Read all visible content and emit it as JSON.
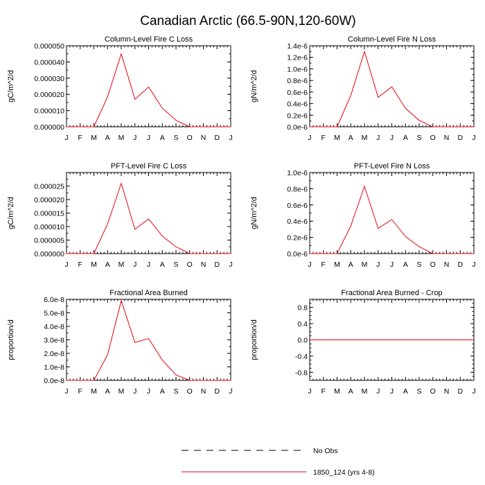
{
  "page_title": "Canadian Arctic (66.5-90N,120-60W)",
  "colors": {
    "series": "#e8000b",
    "axis": "#000000",
    "obs": "#000000"
  },
  "legend": {
    "obs_label": "No Obs",
    "model_label": "1850_124 (yrs 4-8)"
  },
  "chart_data": [
    {
      "type": "line",
      "title": "Column-Level Fire C Loss",
      "ylabel": "gC/m^2/d",
      "xlabel": "",
      "x_tick_labels": [
        "J",
        "F",
        "M",
        "A",
        "M",
        "J",
        "J",
        "A",
        "S",
        "O",
        "N",
        "D",
        "J"
      ],
      "ylim": [
        0,
        5e-05
      ],
      "y_ticks": [
        0,
        1e-05,
        2e-05,
        3e-05,
        4e-05,
        5e-05
      ],
      "y_tick_labels": [
        "0.000000",
        "0.000010",
        "0.000020",
        "0.000030",
        "0.000040",
        "0.000050"
      ],
      "y_minor_step": 5e-06,
      "series": [
        {
          "name": "1850_124 (yrs 4-8)",
          "values": [
            0,
            0,
            0,
            1.85e-05,
            4.5e-05,
            1.7e-05,
            2.45e-05,
            1.15e-05,
            4e-06,
            0,
            0,
            0,
            0
          ]
        }
      ]
    },
    {
      "type": "line",
      "title": "Column-Level Fire N Loss",
      "ylabel": "gN/m^2/d",
      "xlabel": "",
      "x_tick_labels": [
        "J",
        "F",
        "M",
        "A",
        "M",
        "J",
        "J",
        "A",
        "S",
        "O",
        "N",
        "D",
        "J"
      ],
      "ylim": [
        0,
        1.4e-06
      ],
      "y_ticks": [
        0,
        2e-07,
        4e-07,
        6e-07,
        8e-07,
        1e-06,
        1.2e-06,
        1.4e-06
      ],
      "y_tick_labels": [
        "0.0e-6",
        "0.2e-6",
        "0.4e-6",
        "0.6e-6",
        "0.8e-6",
        "1.0e-6",
        "1.2e-6",
        "1.4e-6"
      ],
      "y_minor_step": 1e-07,
      "series": [
        {
          "name": "1850_124 (yrs 4-8)",
          "values": [
            0,
            0,
            0,
            5.4e-07,
            1.3e-06,
            5.1e-07,
            6.9e-07,
            3.2e-07,
            1.1e-07,
            0,
            0,
            0,
            0
          ]
        }
      ]
    },
    {
      "type": "line",
      "title": "PFT-Level Fire C Loss",
      "ylabel": "gC/m^2/d",
      "xlabel": "",
      "x_tick_labels": [
        "J",
        "F",
        "M",
        "A",
        "M",
        "J",
        "J",
        "A",
        "S",
        "O",
        "N",
        "D",
        "J"
      ],
      "ylim": [
        0,
        3e-05
      ],
      "y_ticks": [
        0,
        5e-06,
        1e-05,
        1.5e-05,
        2e-05,
        2.5e-05
      ],
      "y_tick_labels": [
        "0.000000",
        "0.000005",
        "0.000010",
        "0.000015",
        "0.000020",
        "0.000025"
      ],
      "y_minor_step": 2.5e-06,
      "series": [
        {
          "name": "1850_124 (yrs 4-8)",
          "values": [
            0,
            0,
            0,
            1.1e-05,
            2.6e-05,
            9e-06,
            1.28e-05,
            6.5e-06,
            2.5e-06,
            0,
            0,
            0,
            0
          ]
        }
      ]
    },
    {
      "type": "line",
      "title": "PFT-Level Fire N Loss",
      "ylabel": "gN/m^2/d",
      "xlabel": "",
      "x_tick_labels": [
        "J",
        "F",
        "M",
        "A",
        "M",
        "J",
        "J",
        "A",
        "S",
        "O",
        "N",
        "D",
        "J"
      ],
      "ylim": [
        0,
        1e-06
      ],
      "y_ticks": [
        0,
        2e-07,
        4e-07,
        6e-07,
        8e-07,
        1e-06
      ],
      "y_tick_labels": [
        "0.0e-6",
        "0.2e-6",
        "0.4e-6",
        "0.6e-6",
        "0.8e-6",
        "1.0e-6"
      ],
      "y_minor_step": 1e-07,
      "series": [
        {
          "name": "1850_124 (yrs 4-8)",
          "values": [
            0,
            0,
            0,
            3.4e-07,
            8.3e-07,
            3.1e-07,
            4.2e-07,
            2.1e-07,
            8.5e-08,
            0,
            0,
            0,
            0
          ]
        }
      ]
    },
    {
      "type": "line",
      "title": "Fractional Area Burned",
      "ylabel": "proportion/d",
      "xlabel": "",
      "x_tick_labels": [
        "J",
        "F",
        "M",
        "A",
        "M",
        "J",
        "J",
        "A",
        "S",
        "O",
        "N",
        "D",
        "J"
      ],
      "ylim": [
        0,
        6e-08
      ],
      "y_ticks": [
        0,
        1e-08,
        2e-08,
        3e-08,
        4e-08,
        5e-08,
        6e-08
      ],
      "y_tick_labels": [
        "0.0e-8",
        "1.0e-8",
        "2.0e-8",
        "3.0e-8",
        "4.0e-8",
        "5.0e-8",
        "6.0e-8"
      ],
      "y_minor_step": 5e-09,
      "series": [
        {
          "name": "1850_124 (yrs 4-8)",
          "values": [
            0,
            0,
            0,
            1.9e-08,
            5.9e-08,
            2.8e-08,
            3.1e-08,
            1.5e-08,
            4e-09,
            0,
            0,
            0,
            0
          ]
        }
      ]
    },
    {
      "type": "line",
      "title": "Fractional Area Burned - Crop",
      "ylabel": "proportion/d",
      "xlabel": "",
      "x_tick_labels": [
        "J",
        "F",
        "M",
        "A",
        "M",
        "J",
        "J",
        "A",
        "S",
        "O",
        "N",
        "D",
        "J"
      ],
      "ylim": [
        -1,
        1
      ],
      "y_ticks": [
        -0.8,
        -0.4,
        0,
        0.4,
        0.8
      ],
      "y_tick_labels": [
        "-0.8",
        "-0.4",
        "0.0",
        "0.4",
        "0.8"
      ],
      "y_minor_step": 0.1,
      "series": [
        {
          "name": "1850_124 (yrs 4-8)",
          "values": [
            0,
            0,
            0,
            0,
            0,
            0,
            0,
            0,
            0,
            0,
            0,
            0,
            0
          ]
        }
      ]
    }
  ]
}
